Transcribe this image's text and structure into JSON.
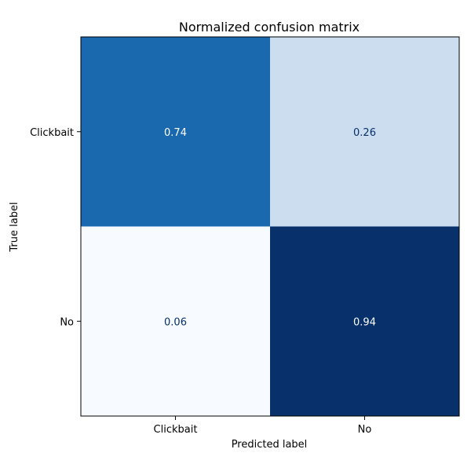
{
  "chart_data": {
    "type": "heatmap",
    "title": "Normalized confusion matrix",
    "xlabel": "Predicted label",
    "ylabel": "True label",
    "x_categories": [
      "Clickbait",
      "No"
    ],
    "y_categories": [
      "Clickbait",
      "No"
    ],
    "values": [
      [
        0.74,
        0.26
      ],
      [
        0.06,
        0.94
      ]
    ],
    "value_labels": [
      [
        "0.74",
        "0.26"
      ],
      [
        "0.06",
        "0.94"
      ]
    ],
    "colormap": "Blues",
    "colorbar": false,
    "grid": false
  },
  "colors": {
    "cell_colors": [
      [
        "#1a68ae",
        "#cbddef"
      ],
      [
        "#f7fbff",
        "#08306b"
      ]
    ],
    "text_on_dark": "#ffffff",
    "text_on_light": "#08306b",
    "frame": "#000000"
  }
}
